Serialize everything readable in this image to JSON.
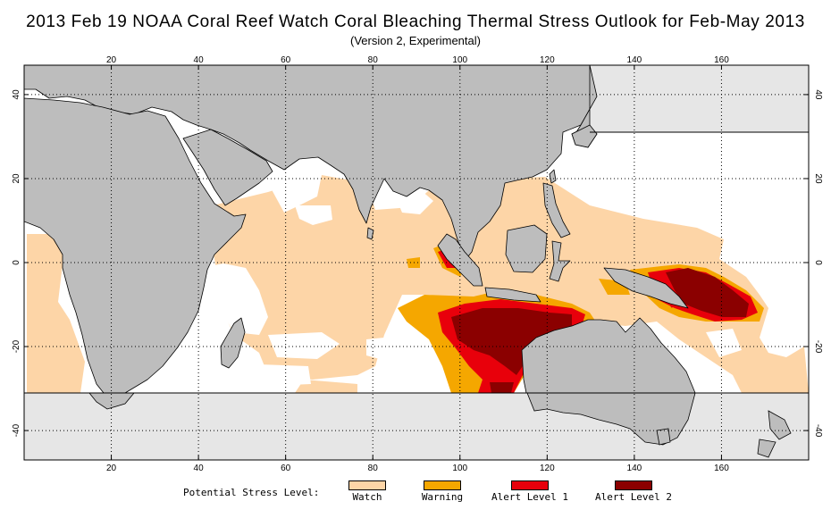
{
  "header": {
    "title": "2013 Feb 19 NOAA Coral Reef Watch Coral Bleaching Thermal Stress Outlook for  Feb-May 2013",
    "subtitle": "(Version 2, Experimental)"
  },
  "map": {
    "lon_range": [
      0,
      180
    ],
    "lat_range": [
      -47,
      47
    ],
    "masked_above_lat": 30,
    "masked_below_lat": -30,
    "x_ticks": [
      "20",
      "40",
      "60",
      "80",
      "100",
      "120",
      "140",
      "160"
    ],
    "y_ticks_left": [
      "40",
      "20",
      "0",
      "-20",
      "-40"
    ],
    "y_ticks_right": [
      "40",
      "20",
      "0",
      "-20",
      "-40"
    ],
    "colors": {
      "land": "#bdbdbd",
      "mask": "#e6e6e6",
      "ocean": "#ffffff",
      "watch": "#fdd5a7",
      "warning": "#f5a700",
      "alert1": "#e8000b",
      "alert2": "#8b0000"
    }
  },
  "legend": {
    "label": "Potential Stress Level:",
    "items": [
      {
        "label": "Watch",
        "color": "#fdd5a7"
      },
      {
        "label": "Warning",
        "color": "#f5a700"
      },
      {
        "label": "Alert Level 1",
        "color": "#e8000b"
      },
      {
        "label": "Alert Level 2",
        "color": "#8b0000"
      }
    ]
  }
}
